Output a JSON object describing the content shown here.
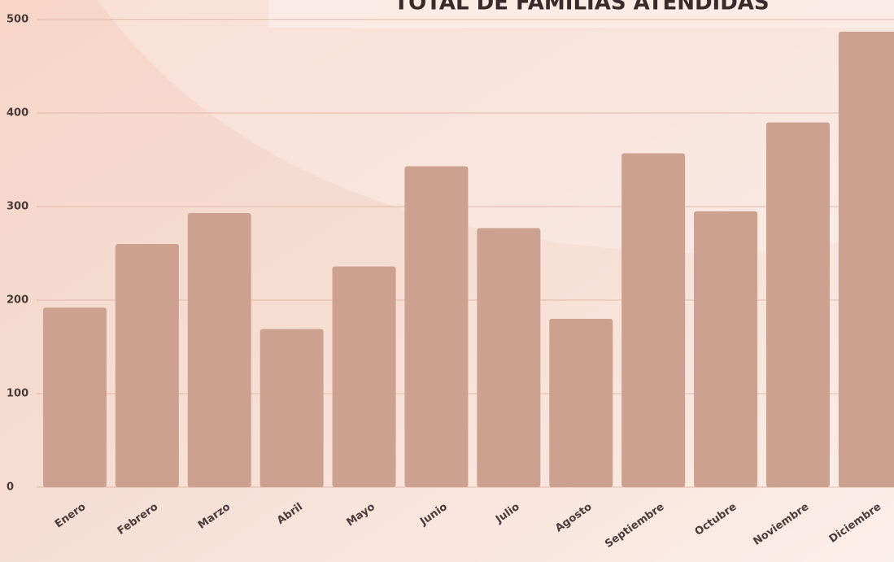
{
  "chart_data": {
    "type": "bar",
    "title": "TOTAL DE FAMILIAS ATENDIDAS",
    "categories": [
      "Enero",
      "Febrero",
      "Marzo",
      "Abril",
      "Mayo",
      "Junio",
      "Julio",
      "Agosto",
      "Septiembre",
      "Octubre",
      "Noviembre",
      "Diciembre"
    ],
    "values": [
      192,
      260,
      293,
      169,
      236,
      343,
      277,
      180,
      357,
      295,
      390,
      487
    ],
    "color": "#cda190",
    "ylim": [
      0,
      500
    ],
    "yticks": [
      0,
      100,
      200,
      300,
      400,
      500
    ],
    "grid": true
  }
}
